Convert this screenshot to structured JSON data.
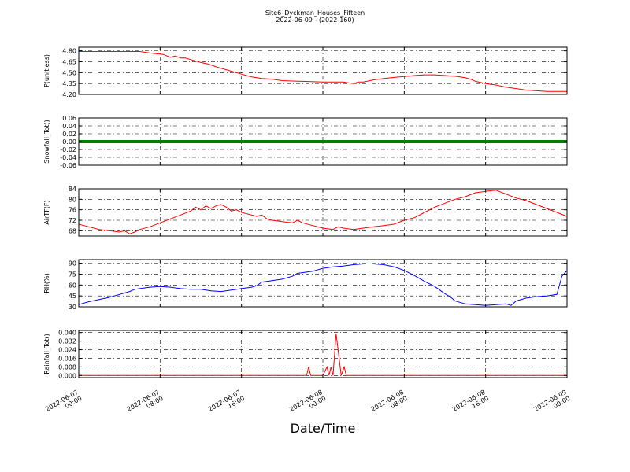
{
  "figure": {
    "title_line1": "Site6_Dyckman_Houses_Fifteen",
    "title_line2": "2022-06-09 - (2022-160)",
    "xlabel": "Date/Time"
  },
  "chart_data": {
    "type": "line",
    "x_range": [
      "2022-06-07 00:00",
      "2022-06-09 00:00"
    ],
    "x_ticks": [
      {
        "line1": "2022-06-07",
        "line2": "00:00",
        "hours": 0
      },
      {
        "line1": "2022-06-07",
        "line2": "08:00",
        "hours": 8
      },
      {
        "line1": "2022-06-07",
        "line2": "16:00",
        "hours": 16
      },
      {
        "line1": "2022-06-08",
        "line2": "00:00",
        "hours": 24
      },
      {
        "line1": "2022-06-08",
        "line2": "08:00",
        "hours": 32
      },
      {
        "line1": "2022-06-08",
        "line2": "16:00",
        "hours": 40
      },
      {
        "line1": "2022-06-09",
        "line2": "00:00",
        "hours": 48
      }
    ],
    "grid": true,
    "panels": [
      {
        "key": "p",
        "ylabel": "P(unitless)",
        "color": "#ff0000",
        "ylim": [
          4.2,
          4.85
        ],
        "yticks": [
          "4.20",
          "4.35",
          "4.50",
          "4.65",
          "4.80"
        ],
        "points": [
          [
            0,
            4.79
          ],
          [
            2,
            4.79
          ],
          [
            4,
            4.79
          ],
          [
            6,
            4.79
          ],
          [
            7,
            4.77
          ],
          [
            8.3,
            4.75
          ],
          [
            9,
            4.71
          ],
          [
            9.5,
            4.73
          ],
          [
            10,
            4.7
          ],
          [
            10.5,
            4.7
          ],
          [
            11,
            4.68
          ],
          [
            12,
            4.64
          ],
          [
            12.7,
            4.62
          ],
          [
            13.5,
            4.58
          ],
          [
            14,
            4.56
          ],
          [
            14.5,
            4.54
          ],
          [
            15,
            4.52
          ],
          [
            16,
            4.48
          ],
          [
            16.5,
            4.46
          ],
          [
            17,
            4.44
          ],
          [
            18,
            4.42
          ],
          [
            19,
            4.41
          ],
          [
            20,
            4.39
          ],
          [
            22,
            4.38
          ],
          [
            24,
            4.37
          ],
          [
            26,
            4.37
          ],
          [
            27,
            4.35
          ],
          [
            27.5,
            4.37
          ],
          [
            28,
            4.37
          ],
          [
            29,
            4.4
          ],
          [
            30,
            4.42
          ],
          [
            31.5,
            4.44
          ],
          [
            33,
            4.46
          ],
          [
            34,
            4.47
          ],
          [
            35,
            4.47
          ],
          [
            36,
            4.46
          ],
          [
            37,
            4.45
          ],
          [
            38,
            4.43
          ],
          [
            38.5,
            4.41
          ],
          [
            39,
            4.38
          ],
          [
            40,
            4.35
          ],
          [
            41,
            4.33
          ],
          [
            42,
            4.3
          ],
          [
            43,
            4.28
          ],
          [
            44,
            4.26
          ],
          [
            45,
            4.25
          ],
          [
            46,
            4.24
          ],
          [
            48,
            4.24
          ]
        ]
      },
      {
        "key": "snow",
        "ylabel": "Snowfall_Tot()",
        "color": "#008000",
        "ylim": [
          -0.06,
          0.06
        ],
        "yticks": [
          "-0.06",
          "-0.04",
          "-0.02",
          "0.00",
          "0.02",
          "0.04",
          "0.06"
        ],
        "points": [
          [
            0,
            0
          ],
          [
            48,
            0
          ]
        ]
      },
      {
        "key": "airt",
        "ylabel": "AirTF(F)",
        "color": "#ff0000",
        "ylim": [
          66,
          84
        ],
        "yticks": [
          "68",
          "72",
          "76",
          "80",
          "84"
        ],
        "points": [
          [
            0,
            70.5
          ],
          [
            1,
            69.5
          ],
          [
            2,
            68.5
          ],
          [
            3,
            68
          ],
          [
            4,
            67.5
          ],
          [
            4.5,
            68
          ],
          [
            5,
            66.8
          ],
          [
            5.5,
            67.5
          ],
          [
            6,
            68.5
          ],
          [
            7,
            69.5
          ],
          [
            8,
            71
          ],
          [
            9,
            72.5
          ],
          [
            10,
            74
          ],
          [
            11,
            75.5
          ],
          [
            11.5,
            77
          ],
          [
            12,
            76
          ],
          [
            12.5,
            77.5
          ],
          [
            13,
            76.5
          ],
          [
            13.5,
            77.5
          ],
          [
            14,
            78
          ],
          [
            14.5,
            77
          ],
          [
            15,
            75.5
          ],
          [
            15.5,
            76
          ],
          [
            16,
            75
          ],
          [
            17,
            74
          ],
          [
            17.5,
            73.5
          ],
          [
            18,
            74
          ],
          [
            18.5,
            72.5
          ],
          [
            19,
            72
          ],
          [
            20,
            71.5
          ],
          [
            21,
            71
          ],
          [
            21.5,
            72
          ],
          [
            22,
            71
          ],
          [
            23,
            70
          ],
          [
            24,
            69
          ],
          [
            25,
            68.5
          ],
          [
            25.5,
            69.5
          ],
          [
            26,
            69
          ],
          [
            27,
            68.5
          ],
          [
            28,
            69
          ],
          [
            29,
            69.5
          ],
          [
            30,
            70
          ],
          [
            31,
            70.5
          ],
          [
            32,
            72
          ],
          [
            33,
            73
          ],
          [
            34,
            75
          ],
          [
            35,
            77
          ],
          [
            36,
            78.5
          ],
          [
            37,
            80
          ],
          [
            38,
            81
          ],
          [
            39,
            82.5
          ],
          [
            40,
            83
          ],
          [
            41,
            83.5
          ],
          [
            42,
            82
          ],
          [
            43,
            80.5
          ],
          [
            44,
            79.5
          ],
          [
            45,
            78
          ],
          [
            46,
            76.5
          ],
          [
            47,
            75
          ],
          [
            48,
            73.5
          ]
        ]
      },
      {
        "key": "rh",
        "ylabel": "RH(%)",
        "color": "#0000ff",
        "ylim": [
          30,
          95
        ],
        "yticks": [
          "30",
          "45",
          "60",
          "75",
          "90"
        ],
        "points": [
          [
            0,
            33
          ],
          [
            1,
            37
          ],
          [
            2,
            40
          ],
          [
            3,
            43
          ],
          [
            4,
            47
          ],
          [
            5,
            51
          ],
          [
            5.5,
            54
          ],
          [
            6,
            55
          ],
          [
            7,
            57
          ],
          [
            8,
            58
          ],
          [
            9,
            57
          ],
          [
            10,
            55
          ],
          [
            11,
            54
          ],
          [
            12,
            54
          ],
          [
            13,
            52
          ],
          [
            14,
            51
          ],
          [
            15,
            53
          ],
          [
            16,
            55
          ],
          [
            17,
            57
          ],
          [
            17.5,
            59
          ],
          [
            18,
            64
          ],
          [
            19,
            66
          ],
          [
            20,
            68
          ],
          [
            21,
            72
          ],
          [
            21.5,
            76
          ],
          [
            22,
            77
          ],
          [
            23,
            79
          ],
          [
            24,
            83
          ],
          [
            25,
            85
          ],
          [
            26,
            86
          ],
          [
            27,
            88
          ],
          [
            28,
            89
          ],
          [
            29,
            89
          ],
          [
            30,
            88
          ],
          [
            31,
            85
          ],
          [
            32,
            80
          ],
          [
            33,
            73
          ],
          [
            34,
            65
          ],
          [
            35,
            58
          ],
          [
            36,
            48
          ],
          [
            36.5,
            44
          ],
          [
            37,
            38
          ],
          [
            38,
            34
          ],
          [
            39,
            33
          ],
          [
            40,
            32
          ],
          [
            41,
            33
          ],
          [
            42,
            34
          ],
          [
            42.5,
            32
          ],
          [
            43,
            38
          ],
          [
            44,
            42
          ],
          [
            45,
            44
          ],
          [
            46,
            45
          ],
          [
            47,
            47
          ],
          [
            47.5,
            72
          ],
          [
            48,
            80
          ]
        ]
      },
      {
        "key": "rain",
        "ylabel": "Rainfall_Tot()",
        "color": "#ff0000",
        "ylim": [
          -0.002,
          0.042
        ],
        "yticks": [
          "0.000",
          "0.008",
          "0.016",
          "0.024",
          "0.032",
          "0.040"
        ],
        "points": [
          [
            0,
            0
          ],
          [
            22.4,
            0
          ],
          [
            22.6,
            0.008
          ],
          [
            22.8,
            0
          ],
          [
            24,
            0
          ],
          [
            24.4,
            0.008
          ],
          [
            24.6,
            0
          ],
          [
            24.8,
            0.008
          ],
          [
            25,
            0
          ],
          [
            25.3,
            0.039
          ],
          [
            25.8,
            0
          ],
          [
            26.1,
            0.008
          ],
          [
            26.3,
            0
          ],
          [
            48,
            0
          ]
        ]
      }
    ]
  }
}
